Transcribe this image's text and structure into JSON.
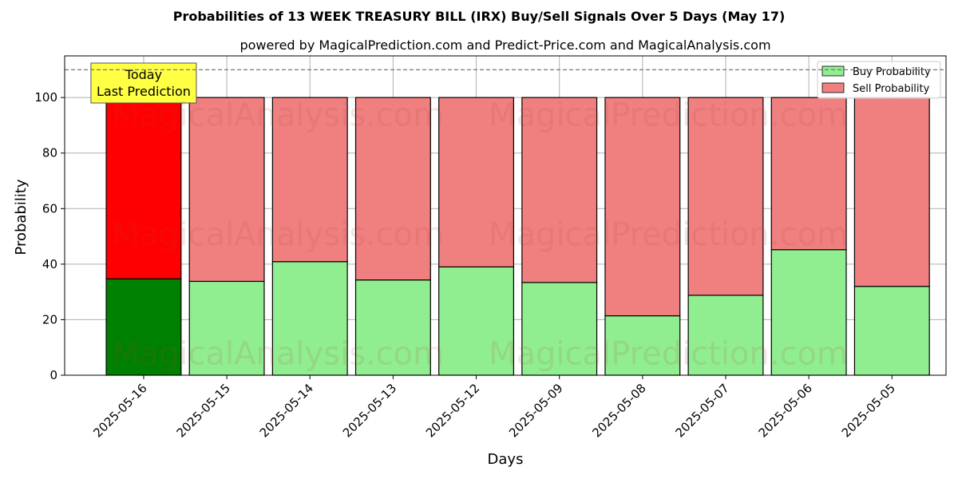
{
  "chart_data": {
    "type": "bar",
    "stacked": true,
    "title": "Probabilities of 13 WEEK TREASURY BILL (IRX) Buy/Sell Signals Over 5 Days (May 17)",
    "subtitle": "powered by MagicalPrediction.com and Predict-Price.com and MagicalAnalysis.com",
    "xlabel": "Days",
    "ylabel": "Probability",
    "ylim": [
      0,
      115
    ],
    "yticks": [
      0,
      20,
      40,
      60,
      80,
      100
    ],
    "grid": true,
    "legend_position": "top-right",
    "categories": [
      "2025-05-16",
      "2025-05-15",
      "2025-05-14",
      "2025-05-13",
      "2025-05-12",
      "2025-05-09",
      "2025-05-08",
      "2025-05-07",
      "2025-05-06",
      "2025-05-05"
    ],
    "series": [
      {
        "name": "Buy Probability",
        "values": [
          34.7,
          33.8,
          40.9,
          34.3,
          39.0,
          33.4,
          21.4,
          28.8,
          45.2,
          32.0
        ]
      },
      {
        "name": "Sell Probability",
        "values": [
          65.3,
          66.2,
          59.1,
          65.7,
          61.0,
          66.6,
          78.6,
          71.2,
          54.8,
          68.0
        ]
      }
    ],
    "reference_line": 110,
    "annotation": {
      "line1": "Today",
      "line2": "Last Prediction"
    },
    "watermarks": [
      "MagicalAnalysis.com",
      "MagicalPrediction.com"
    ],
    "colors": {
      "buy": "#90ee90",
      "sell": "#f08080",
      "buy_highlight": "#008000",
      "sell_highlight": "#ff0000",
      "annotation_bg": "#ffff44",
      "grid": "#b0b0b0"
    }
  }
}
